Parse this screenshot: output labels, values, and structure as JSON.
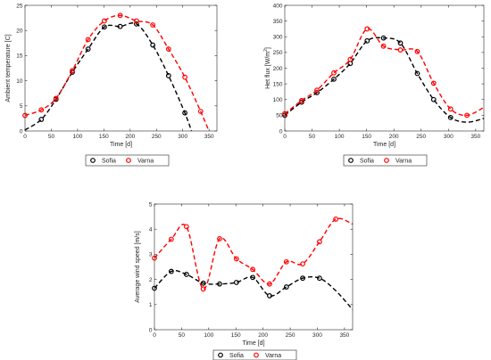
{
  "chart_data": [
    {
      "type": "line",
      "xlabel": "Time [d]",
      "ylabel": "Ambient temperature [C]",
      "xlim": [
        0,
        365
      ],
      "ylim": [
        0,
        25
      ],
      "xticks": [
        "0",
        "50",
        "100",
        "150",
        "200",
        "250",
        "300",
        "350"
      ],
      "yticks": [
        "0",
        "5",
        "10",
        "15",
        "20",
        "25"
      ],
      "legend": "bottom-outside",
      "series": [
        {
          "name": "Sofia",
          "color": "#000000",
          "points": [
            [
              31,
              2.3
            ],
            [
              59,
              6.3
            ],
            [
              90,
              11.7
            ],
            [
              120,
              16.3
            ],
            [
              151,
              20.7
            ],
            [
              181,
              20.8
            ],
            [
              212,
              21.3
            ],
            [
              243,
              17.1
            ],
            [
              273,
              11.0
            ],
            [
              304,
              3.6
            ]
          ],
          "curve": [
            [
              0,
              0.2
            ],
            [
              31,
              2.3
            ],
            [
              59,
              6.3
            ],
            [
              90,
              11.7
            ],
            [
              120,
              16.3
            ],
            [
              151,
              20.7
            ],
            [
              181,
              20.8
            ],
            [
              212,
              21.3
            ],
            [
              243,
              17.1
            ],
            [
              273,
              11.0
            ],
            [
              304,
              3.6
            ],
            [
              320,
              -1.0
            ]
          ]
        },
        {
          "name": "Varna",
          "color": "#ff0000",
          "points": [
            [
              0,
              3.1
            ],
            [
              31,
              4.2
            ],
            [
              59,
              6.5
            ],
            [
              90,
              12.0
            ],
            [
              120,
              18.2
            ],
            [
              151,
              21.9
            ],
            [
              181,
              23.0
            ],
            [
              212,
              21.9
            ],
            [
              243,
              21.1
            ],
            [
              273,
              16.3
            ],
            [
              304,
              10.7
            ],
            [
              334,
              3.9
            ]
          ],
          "curve": [
            [
              0,
              3.1
            ],
            [
              31,
              4.2
            ],
            [
              59,
              6.5
            ],
            [
              90,
              12.0
            ],
            [
              120,
              18.2
            ],
            [
              151,
              21.9
            ],
            [
              181,
              23.0
            ],
            [
              212,
              21.9
            ],
            [
              243,
              21.1
            ],
            [
              273,
              16.3
            ],
            [
              304,
              10.7
            ],
            [
              334,
              3.9
            ],
            [
              349,
              0.2
            ]
          ]
        }
      ]
    },
    {
      "type": "line",
      "xlabel": "Time [d]",
      "ylabel_main": "Het flux [W/m",
      "ylabel_sup": "2",
      "ylabel_end": "]",
      "xlim": [
        0,
        365
      ],
      "ylim": [
        0,
        400
      ],
      "xticks": [
        "0",
        "50",
        "100",
        "150",
        "200",
        "250",
        "300",
        "350"
      ],
      "yticks": [
        "0",
        "50",
        "100",
        "150",
        "200",
        "250",
        "300",
        "350",
        "400"
      ],
      "legend": "bottom-outside",
      "series": [
        {
          "name": "Sofia",
          "color": "#000000",
          "points": [
            [
              0,
              50
            ],
            [
              31,
              92
            ],
            [
              59,
              122
            ],
            [
              90,
              165
            ],
            [
              120,
              215
            ],
            [
              151,
              287
            ],
            [
              181,
              296
            ],
            [
              212,
              280
            ],
            [
              243,
              183
            ],
            [
              273,
              100
            ],
            [
              304,
              43
            ]
          ],
          "curve": [
            [
              0,
              50
            ],
            [
              31,
              92
            ],
            [
              59,
              122
            ],
            [
              90,
              165
            ],
            [
              120,
              215
            ],
            [
              151,
              287
            ],
            [
              181,
              296
            ],
            [
              212,
              280
            ],
            [
              243,
              183
            ],
            [
              273,
              100
            ],
            [
              304,
              43
            ],
            [
              334,
              28
            ],
            [
              365,
              40
            ]
          ]
        },
        {
          "name": "Varna",
          "color": "#ff0000",
          "points": [
            [
              0,
              55
            ],
            [
              31,
              97
            ],
            [
              59,
              130
            ],
            [
              90,
              185
            ],
            [
              120,
              228
            ],
            [
              151,
              325
            ],
            [
              181,
              270
            ],
            [
              212,
              258
            ],
            [
              243,
              253
            ],
            [
              273,
              152
            ],
            [
              304,
              70
            ],
            [
              334,
              50
            ]
          ],
          "curve": [
            [
              0,
              55
            ],
            [
              31,
              97
            ],
            [
              59,
              130
            ],
            [
              90,
              185
            ],
            [
              120,
              228
            ],
            [
              151,
              325
            ],
            [
              181,
              270
            ],
            [
              212,
              258
            ],
            [
              243,
              253
            ],
            [
              273,
              152
            ],
            [
              304,
              70
            ],
            [
              334,
              50
            ],
            [
              365,
              75
            ]
          ]
        }
      ]
    },
    {
      "type": "line",
      "xlabel": "Time [d]",
      "ylabel": "Average wind speed [m/s]",
      "xlim": [
        0,
        365
      ],
      "ylim": [
        0,
        5
      ],
      "xticks": [
        "0",
        "50",
        "100",
        "150",
        "200",
        "250",
        "300",
        "350"
      ],
      "yticks": [
        "0",
        "1",
        "2",
        "3",
        "4",
        "5"
      ],
      "legend": "bottom-outside",
      "series": [
        {
          "name": "Sofia",
          "color": "#000000",
          "points": [
            [
              0,
              1.65
            ],
            [
              31,
              2.32
            ],
            [
              59,
              2.2
            ],
            [
              90,
              1.85
            ],
            [
              120,
              1.82
            ],
            [
              151,
              1.88
            ],
            [
              181,
              2.08
            ],
            [
              212,
              1.35
            ],
            [
              243,
              1.7
            ],
            [
              273,
              2.05
            ],
            [
              304,
              2.05
            ]
          ],
          "curve": [
            [
              0,
              1.65
            ],
            [
              31,
              2.32
            ],
            [
              59,
              2.2
            ],
            [
              90,
              1.85
            ],
            [
              120,
              1.82
            ],
            [
              151,
              1.88
            ],
            [
              181,
              2.08
            ],
            [
              212,
              1.35
            ],
            [
              243,
              1.7
            ],
            [
              273,
              2.05
            ],
            [
              304,
              2.05
            ],
            [
              334,
              1.55
            ],
            [
              365,
              0.8
            ]
          ]
        },
        {
          "name": "Varna",
          "color": "#ff0000",
          "points": [
            [
              0,
              2.85
            ],
            [
              31,
              3.6
            ],
            [
              59,
              4.1
            ],
            [
              90,
              1.62
            ],
            [
              120,
              3.62
            ],
            [
              151,
              2.82
            ],
            [
              181,
              2.4
            ],
            [
              212,
              1.82
            ],
            [
              243,
              2.7
            ],
            [
              273,
              2.62
            ],
            [
              304,
              3.5
            ],
            [
              334,
              4.4
            ]
          ],
          "curve": [
            [
              0,
              2.85
            ],
            [
              31,
              3.6
            ],
            [
              59,
              4.1
            ],
            [
              90,
              1.62
            ],
            [
              120,
              3.62
            ],
            [
              151,
              2.82
            ],
            [
              181,
              2.4
            ],
            [
              212,
              1.82
            ],
            [
              243,
              2.7
            ],
            [
              273,
              2.62
            ],
            [
              304,
              3.5
            ],
            [
              334,
              4.4
            ],
            [
              365,
              4.2
            ]
          ]
        }
      ]
    }
  ]
}
